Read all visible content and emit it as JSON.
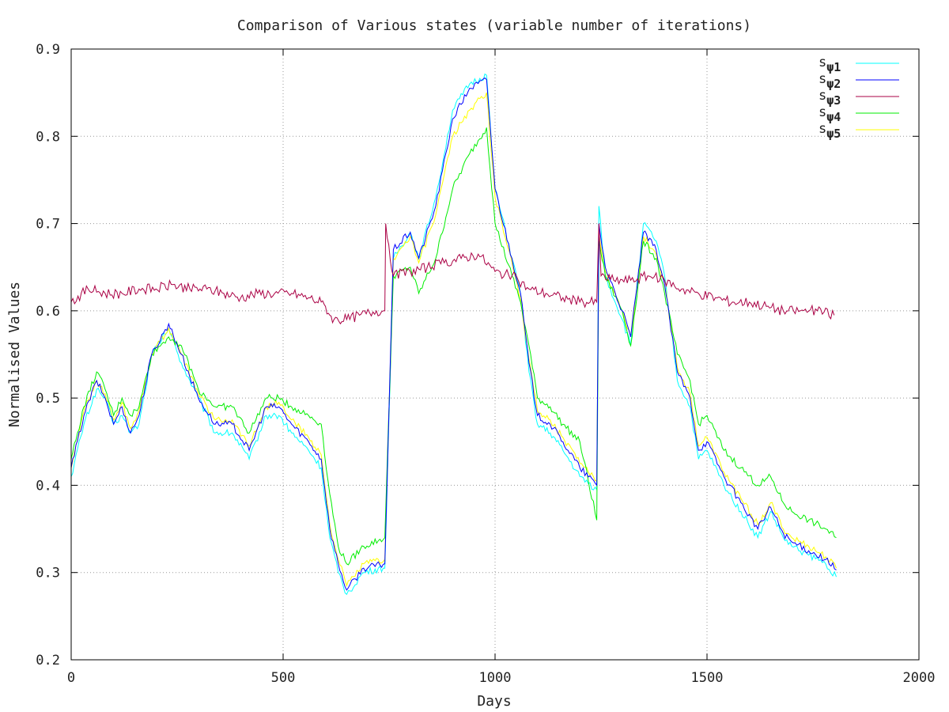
{
  "chart_data": {
    "type": "line",
    "title": "Comparison of Various states (variable number of iterations)",
    "xlabel": "Days",
    "ylabel": "Normalised Values",
    "xlim": [
      0,
      2000
    ],
    "ylim": [
      0.2,
      0.9
    ],
    "x_ticks": [
      0,
      500,
      1000,
      1500,
      2000
    ],
    "x_tick_labels": [
      "0",
      "500",
      "1000",
      "1500",
      "2000"
    ],
    "y_ticks": [
      0.2,
      0.3,
      0.4,
      0.5,
      0.6,
      0.7,
      0.8,
      0.9
    ],
    "y_tick_labels": [
      "0.2",
      "0.3",
      "0.4",
      "0.5",
      "0.6",
      "0.7",
      "0.8",
      "0.9"
    ],
    "grid": true,
    "legend_position": "top-right",
    "series": [
      {
        "name": "s_ψ1",
        "legend_base": "s",
        "legend_sub": "ψ1",
        "color": "#00ffff",
        "x": [
          0,
          30,
          60,
          80,
          100,
          120,
          140,
          160,
          190,
          230,
          260,
          300,
          340,
          380,
          420,
          460,
          490,
          520,
          560,
          590,
          610,
          630,
          650,
          690,
          740,
          760,
          800,
          820,
          860,
          900,
          940,
          980,
          1000,
          1040,
          1060,
          1080,
          1100,
          1130,
          1160,
          1200,
          1240,
          1245,
          1260,
          1300,
          1320,
          1350,
          1380,
          1400,
          1430,
          1460,
          1480,
          1500,
          1540,
          1580,
          1620,
          1650,
          1680,
          1700,
          1740,
          1780,
          1805
        ],
        "values": [
          0.41,
          0.47,
          0.51,
          0.5,
          0.47,
          0.48,
          0.46,
          0.47,
          0.55,
          0.58,
          0.54,
          0.5,
          0.46,
          0.46,
          0.43,
          0.48,
          0.48,
          0.46,
          0.44,
          0.42,
          0.34,
          0.3,
          0.275,
          0.3,
          0.305,
          0.66,
          0.69,
          0.66,
          0.73,
          0.83,
          0.86,
          0.87,
          0.74,
          0.66,
          0.62,
          0.53,
          0.47,
          0.46,
          0.44,
          0.41,
          0.395,
          0.72,
          0.64,
          0.59,
          0.56,
          0.7,
          0.68,
          0.64,
          0.52,
          0.49,
          0.43,
          0.44,
          0.4,
          0.37,
          0.34,
          0.37,
          0.34,
          0.33,
          0.32,
          0.31,
          0.295
        ]
      },
      {
        "name": "s_ψ2",
        "legend_base": "s",
        "legend_sub": "ψ2",
        "color": "#0000ff",
        "x": [
          0,
          30,
          60,
          80,
          100,
          120,
          140,
          160,
          190,
          230,
          260,
          300,
          340,
          380,
          420,
          460,
          490,
          520,
          560,
          590,
          610,
          630,
          650,
          690,
          740,
          760,
          800,
          820,
          860,
          900,
          940,
          980,
          1000,
          1040,
          1060,
          1080,
          1100,
          1130,
          1160,
          1200,
          1240,
          1245,
          1260,
          1300,
          1320,
          1350,
          1380,
          1400,
          1430,
          1460,
          1480,
          1500,
          1540,
          1580,
          1620,
          1650,
          1680,
          1700,
          1740,
          1780,
          1805
        ],
        "values": [
          0.42,
          0.48,
          0.52,
          0.5,
          0.47,
          0.49,
          0.46,
          0.48,
          0.55,
          0.585,
          0.55,
          0.5,
          0.47,
          0.47,
          0.44,
          0.49,
          0.49,
          0.47,
          0.45,
          0.43,
          0.35,
          0.31,
          0.28,
          0.305,
          0.31,
          0.67,
          0.69,
          0.66,
          0.72,
          0.82,
          0.855,
          0.865,
          0.74,
          0.66,
          0.62,
          0.54,
          0.48,
          0.47,
          0.45,
          0.42,
          0.4,
          0.7,
          0.65,
          0.6,
          0.57,
          0.69,
          0.67,
          0.63,
          0.53,
          0.5,
          0.44,
          0.45,
          0.41,
          0.38,
          0.35,
          0.375,
          0.345,
          0.335,
          0.325,
          0.315,
          0.303
        ]
      },
      {
        "name": "s_ψ3",
        "legend_base": "s",
        "legend_sub": "ψ3",
        "color": "#aa0044",
        "x": [
          0,
          40,
          80,
          120,
          160,
          200,
          240,
          280,
          320,
          360,
          400,
          440,
          480,
          520,
          560,
          590,
          600,
          610,
          620,
          650,
          680,
          720,
          740,
          742,
          760,
          800,
          840,
          880,
          920,
          960,
          1000,
          1040,
          1080,
          1120,
          1160,
          1200,
          1240,
          1245,
          1250,
          1280,
          1320,
          1360,
          1400,
          1440,
          1480,
          1520,
          1560,
          1600,
          1640,
          1680,
          1720,
          1760,
          1800
        ],
        "values": [
          0.61,
          0.625,
          0.62,
          0.62,
          0.625,
          0.625,
          0.63,
          0.625,
          0.625,
          0.62,
          0.615,
          0.62,
          0.62,
          0.62,
          0.615,
          0.61,
          0.605,
          0.595,
          0.59,
          0.59,
          0.595,
          0.6,
          0.6,
          0.7,
          0.64,
          0.645,
          0.65,
          0.655,
          0.66,
          0.665,
          0.645,
          0.64,
          0.625,
          0.62,
          0.615,
          0.61,
          0.61,
          0.7,
          0.64,
          0.635,
          0.635,
          0.64,
          0.635,
          0.625,
          0.62,
          0.615,
          0.61,
          0.61,
          0.605,
          0.6,
          0.6,
          0.6,
          0.595
        ]
      },
      {
        "name": "s_ψ4",
        "legend_base": "s",
        "legend_sub": "ψ4",
        "color": "#00ee00",
        "x": [
          0,
          30,
          60,
          80,
          100,
          120,
          140,
          160,
          190,
          230,
          260,
          300,
          340,
          380,
          420,
          460,
          490,
          520,
          560,
          590,
          610,
          630,
          650,
          690,
          740,
          760,
          800,
          820,
          860,
          900,
          940,
          980,
          1000,
          1040,
          1060,
          1080,
          1100,
          1130,
          1160,
          1200,
          1240,
          1245,
          1260,
          1300,
          1320,
          1350,
          1380,
          1400,
          1430,
          1460,
          1480,
          1500,
          1540,
          1580,
          1620,
          1650,
          1680,
          1700,
          1740,
          1780,
          1805
        ],
        "values": [
          0.43,
          0.49,
          0.53,
          0.51,
          0.48,
          0.5,
          0.48,
          0.49,
          0.55,
          0.57,
          0.56,
          0.51,
          0.49,
          0.49,
          0.46,
          0.5,
          0.5,
          0.49,
          0.48,
          0.47,
          0.39,
          0.33,
          0.31,
          0.33,
          0.34,
          0.64,
          0.65,
          0.62,
          0.66,
          0.74,
          0.78,
          0.81,
          0.7,
          0.64,
          0.61,
          0.56,
          0.5,
          0.49,
          0.47,
          0.45,
          0.36,
          0.68,
          0.64,
          0.6,
          0.56,
          0.68,
          0.66,
          0.62,
          0.55,
          0.52,
          0.47,
          0.48,
          0.44,
          0.42,
          0.4,
          0.41,
          0.38,
          0.37,
          0.36,
          0.35,
          0.34
        ]
      },
      {
        "name": "s_ψ5",
        "legend_base": "s",
        "legend_sub": "ψ5",
        "color": "#ffff00",
        "x": [
          0,
          30,
          60,
          80,
          100,
          120,
          140,
          160,
          190,
          230,
          260,
          300,
          340,
          380,
          420,
          460,
          490,
          520,
          560,
          590,
          610,
          630,
          650,
          690,
          740,
          760,
          800,
          820,
          860,
          900,
          940,
          980,
          1000,
          1040,
          1060,
          1080,
          1100,
          1130,
          1160,
          1200,
          1240,
          1245,
          1260,
          1300,
          1320,
          1350,
          1380,
          1400,
          1430,
          1460,
          1480,
          1500,
          1540,
          1580,
          1620,
          1650,
          1680,
          1700,
          1740,
          1780,
          1805
        ],
        "values": [
          0.42,
          0.485,
          0.52,
          0.505,
          0.475,
          0.495,
          0.465,
          0.485,
          0.55,
          0.58,
          0.55,
          0.505,
          0.475,
          0.475,
          0.445,
          0.49,
          0.495,
          0.475,
          0.455,
          0.435,
          0.355,
          0.315,
          0.285,
          0.31,
          0.315,
          0.66,
          0.685,
          0.655,
          0.71,
          0.8,
          0.83,
          0.85,
          0.73,
          0.655,
          0.615,
          0.545,
          0.485,
          0.475,
          0.455,
          0.425,
          0.405,
          0.69,
          0.645,
          0.6,
          0.57,
          0.685,
          0.665,
          0.63,
          0.535,
          0.505,
          0.445,
          0.455,
          0.415,
          0.385,
          0.355,
          0.38,
          0.35,
          0.34,
          0.33,
          0.318,
          0.305
        ]
      }
    ]
  }
}
